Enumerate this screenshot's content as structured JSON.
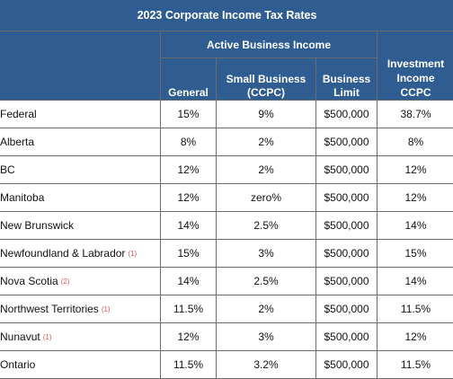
{
  "table": {
    "title": "2023 Corporate Income Tax Rates",
    "group_header": "Active Business Income",
    "columns": {
      "general": "General",
      "small_business_1": "Small Business",
      "small_business_2": "(CCPC)",
      "business_limit_1": "Business",
      "business_limit_2": "Limit",
      "investment_1": "Investment",
      "investment_2": "Income",
      "investment_3": "CCPC"
    },
    "rows": [
      {
        "jurisdiction": "Federal",
        "note": "",
        "general": "15%",
        "small_business": "9%",
        "business_limit": "$500,000",
        "investment_income": "38.7%"
      },
      {
        "jurisdiction": "Alberta",
        "note": "",
        "general": "8%",
        "small_business": "2%",
        "business_limit": "$500,000",
        "investment_income": "8%"
      },
      {
        "jurisdiction": "BC",
        "note": "",
        "general": "12%",
        "small_business": "2%",
        "business_limit": "$500,000",
        "investment_income": "12%"
      },
      {
        "jurisdiction": "Manitoba",
        "note": "",
        "general": "12%",
        "small_business": "zero%",
        "business_limit": "$500,000",
        "investment_income": "12%"
      },
      {
        "jurisdiction": "New Brunswick",
        "note": "",
        "general": "14%",
        "small_business": "2.5%",
        "business_limit": "$500,000",
        "investment_income": "14%"
      },
      {
        "jurisdiction": "Newfoundland & Labrador",
        "note": "(1)",
        "general": "15%",
        "small_business": "3%",
        "business_limit": "$500,000",
        "investment_income": "15%"
      },
      {
        "jurisdiction": "Nova Scotia",
        "note": "(2)",
        "general": "14%",
        "small_business": "2.5%",
        "business_limit": "$500,000",
        "investment_income": "14%"
      },
      {
        "jurisdiction": "Northwest Territories",
        "note": "(1)",
        "general": "11.5%",
        "small_business": "2%",
        "business_limit": "$500,000",
        "investment_income": "11.5%"
      },
      {
        "jurisdiction": "Nunavut",
        "note": "(1)",
        "general": "12%",
        "small_business": "3%",
        "business_limit": "$500,000",
        "investment_income": "12%"
      },
      {
        "jurisdiction": "Ontario",
        "note": "",
        "general": "11.5%",
        "small_business": "3.2%",
        "business_limit": "$500,000",
        "investment_income": "11.5%"
      }
    ]
  }
}
